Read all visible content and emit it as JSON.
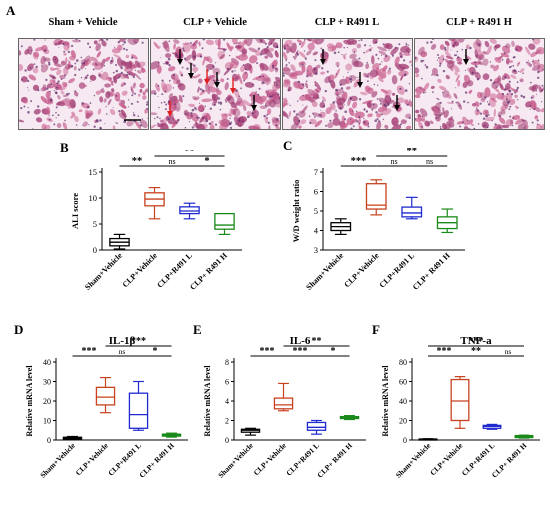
{
  "panel_letters": {
    "A": "A",
    "B": "B",
    "C": "C",
    "D": "D",
    "E": "E",
    "F": "F"
  },
  "histology": {
    "titles": [
      "Sham + Vehicle",
      "CLP + Vehicle",
      "CLP + R491 L",
      "CLP + R491 H"
    ],
    "arrows": [
      {
        "panel": 1,
        "color": "#000000",
        "count": 4
      },
      {
        "panel": 1,
        "color": "#e02020",
        "count": 3
      },
      {
        "panel": 2,
        "color": "#000000",
        "count": 3
      },
      {
        "panel": 3,
        "color": "#000000",
        "count": 1
      }
    ],
    "colors": {
      "background": "#f7e9f1",
      "tissue": "#c9608f",
      "tissue_dark": "#a23d74",
      "nuclei": "#5a2a6a"
    }
  },
  "chart_data": [
    {
      "id": "B",
      "type": "box",
      "ylabel": "ALI score",
      "ylim": [
        0,
        15
      ],
      "yticks": [
        0,
        5,
        10,
        15
      ],
      "categories": [
        "Sham+Vehicle",
        "CLP+Vehicle",
        "CLP+R491 L",
        "CLP+ R491 H"
      ],
      "colors": [
        "#000000",
        "#c8421e",
        "#1f2bd0",
        "#1a8a1a"
      ],
      "boxes": [
        {
          "min": 0.2,
          "q1": 0.8,
          "median": 1.5,
          "q3": 2.2,
          "max": 3
        },
        {
          "min": 6,
          "q1": 8.5,
          "median": 9.8,
          "q3": 11,
          "max": 12
        },
        {
          "min": 6,
          "q1": 7,
          "median": 7.5,
          "q3": 8.3,
          "max": 9
        },
        {
          "min": 3,
          "q1": 4,
          "median": 4.8,
          "q3": 7,
          "max": 7
        }
      ],
      "brackets": [
        {
          "from": 0,
          "to": 1,
          "label": "**",
          "level": 1
        },
        {
          "from": 1,
          "to": 2,
          "label": "ns",
          "level": 1
        },
        {
          "from": 2,
          "to": 3,
          "label": "*",
          "level": 1
        },
        {
          "from": 1,
          "to": 3,
          "label": "**",
          "level": 2
        }
      ]
    },
    {
      "id": "C",
      "type": "box",
      "ylabel": "W/D weight ratio",
      "ylim": [
        3,
        7
      ],
      "yticks": [
        3,
        4,
        5,
        6,
        7
      ],
      "categories": [
        "Sham+Vehicle",
        "CLP+Vehicle",
        "CLP+R491 L",
        "CLP+ R491 H"
      ],
      "colors": [
        "#000000",
        "#c8421e",
        "#1f2bd0",
        "#1a8a1a"
      ],
      "boxes": [
        {
          "min": 3.8,
          "q1": 4.0,
          "median": 4.2,
          "q3": 4.4,
          "max": 4.6
        },
        {
          "min": 4.8,
          "q1": 5.1,
          "median": 5.3,
          "q3": 6.4,
          "max": 6.6
        },
        {
          "min": 4.6,
          "q1": 4.7,
          "median": 4.9,
          "q3": 5.2,
          "max": 5.7
        },
        {
          "min": 3.9,
          "q1": 4.1,
          "median": 4.4,
          "q3": 4.7,
          "max": 5.1
        }
      ],
      "brackets": [
        {
          "from": 0,
          "to": 1,
          "label": "***",
          "level": 1
        },
        {
          "from": 1,
          "to": 2,
          "label": "ns",
          "level": 1
        },
        {
          "from": 2,
          "to": 3,
          "label": "ns",
          "level": 1
        },
        {
          "from": 1,
          "to": 3,
          "label": "**",
          "level": 2
        }
      ]
    },
    {
      "id": "D",
      "type": "box",
      "title": "IL-1β",
      "ylabel": "Relative mRNA level",
      "ylim": [
        0,
        40
      ],
      "yticks": [
        0,
        10,
        20,
        30,
        40
      ],
      "categories": [
        "Sham+Vehicle",
        "CLP+Vehicle",
        "CLP+R491 L",
        "CLP+ R491 H"
      ],
      "colors": [
        "#000000",
        "#c8421e",
        "#1f2bd0",
        "#1a8a1a"
      ],
      "boxes": [
        {
          "min": 0.2,
          "q1": 0.6,
          "median": 1,
          "q3": 1.4,
          "max": 1.8
        },
        {
          "min": 14,
          "q1": 18,
          "median": 22,
          "q3": 27,
          "max": 32
        },
        {
          "min": 5,
          "q1": 6,
          "median": 13,
          "q3": 24,
          "max": 30
        },
        {
          "min": 1.5,
          "q1": 2,
          "median": 2.5,
          "q3": 3,
          "max": 3.5
        }
      ],
      "brackets": [
        {
          "from": 0,
          "to": 1,
          "label": "***",
          "level": 1
        },
        {
          "from": 1,
          "to": 2,
          "label": "ns",
          "level": 1
        },
        {
          "from": 2,
          "to": 3,
          "label": "*",
          "level": 1
        },
        {
          "from": 1,
          "to": 3,
          "label": "***",
          "level": 2
        }
      ]
    },
    {
      "id": "E",
      "type": "box",
      "title": "IL-6",
      "ylabel": "Relative mRNA level",
      "ylim": [
        0,
        8
      ],
      "yticks": [
        0,
        2,
        4,
        6,
        8
      ],
      "categories": [
        "Sham+Vehicle",
        "CLP+Vehicle",
        "CLP+R491 L",
        "CLP+ R491 H"
      ],
      "colors": [
        "#000000",
        "#c8421e",
        "#1f2bd0",
        "#1a8a1a"
      ],
      "boxes": [
        {
          "min": 0.5,
          "q1": 0.8,
          "median": 1,
          "q3": 1.1,
          "max": 1.2
        },
        {
          "min": 3,
          "q1": 3.2,
          "median": 3.6,
          "q3": 4.3,
          "max": 5.8
        },
        {
          "min": 0.6,
          "q1": 1,
          "median": 1.3,
          "q3": 1.8,
          "max": 2
        },
        {
          "min": 2.1,
          "q1": 2.2,
          "median": 2.3,
          "q3": 2.4,
          "max": 2.5
        }
      ],
      "brackets": [
        {
          "from": 0,
          "to": 1,
          "label": "***",
          "level": 1
        },
        {
          "from": 1,
          "to": 2,
          "label": "***",
          "level": 1
        },
        {
          "from": 2,
          "to": 3,
          "label": "*",
          "level": 1
        },
        {
          "from": 1,
          "to": 3,
          "label": "**",
          "level": 2
        }
      ]
    },
    {
      "id": "F",
      "type": "box",
      "title": "TNF-a",
      "ylabel": "Relative mRNA level",
      "ylim": [
        0,
        80
      ],
      "yticks": [
        0,
        20,
        40,
        60,
        80
      ],
      "categories": [
        "Sham+Vehicle",
        "CLP+Vehicle",
        "CLP+R491 L",
        "CLP+ R491 H"
      ],
      "colors": [
        "#000000",
        "#c8421e",
        "#1f2bd0",
        "#1a8a1a"
      ],
      "boxes": [
        {
          "min": 0.2,
          "q1": 0.5,
          "median": 0.8,
          "q3": 1,
          "max": 1.3
        },
        {
          "min": 12,
          "q1": 20,
          "median": 40,
          "q3": 62,
          "max": 65
        },
        {
          "min": 11,
          "q1": 12,
          "median": 14,
          "q3": 15,
          "max": 16
        },
        {
          "min": 2,
          "q1": 2.5,
          "median": 3.5,
          "q3": 4.5,
          "max": 5
        }
      ],
      "brackets": [
        {
          "from": 0,
          "to": 1,
          "label": "***",
          "level": 1
        },
        {
          "from": 1,
          "to": 2,
          "label": "**",
          "level": 1
        },
        {
          "from": 2,
          "to": 3,
          "label": "ns",
          "level": 1
        },
        {
          "from": 0,
          "to": 3,
          "label": "***",
          "level": 2
        }
      ]
    }
  ]
}
